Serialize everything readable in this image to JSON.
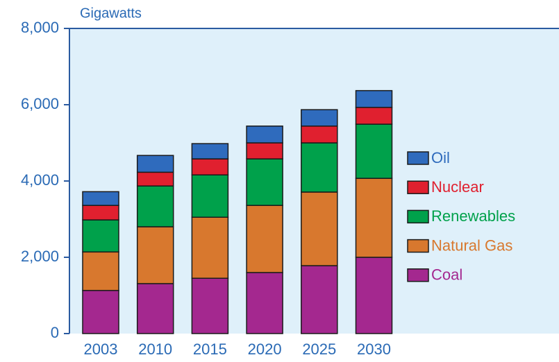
{
  "chart_data": {
    "type": "stacked-bar",
    "y_label": "Gigawatts",
    "categories": [
      "2003",
      "2010",
      "2015",
      "2020",
      "2025",
      "2030"
    ],
    "series": [
      {
        "name": "Coal",
        "color": "#a4288f",
        "values": [
          1130,
          1310,
          1450,
          1600,
          1780,
          2000
        ]
      },
      {
        "name": "Natural Gas",
        "color": "#d8782e",
        "values": [
          1010,
          1490,
          1600,
          1760,
          1930,
          2070
        ]
      },
      {
        "name": "Renewables",
        "color": "#00a14b",
        "values": [
          840,
          1070,
          1110,
          1220,
          1290,
          1420
        ]
      },
      {
        "name": "Nuclear",
        "color": "#e0202f",
        "values": [
          380,
          360,
          420,
          420,
          440,
          440
        ]
      },
      {
        "name": "Oil",
        "color": "#2f6bbd",
        "values": [
          360,
          440,
          400,
          440,
          430,
          440
        ]
      }
    ],
    "ylim": [
      0,
      8000
    ],
    "yticks": [
      0,
      {
        "value": 2000,
        "label": "2,000"
      },
      {
        "value": 4000,
        "label": "4,000"
      },
      {
        "value": 6000,
        "label": "6,000"
      },
      {
        "value": 8000,
        "label": "8,000"
      }
    ],
    "legend": "right"
  }
}
